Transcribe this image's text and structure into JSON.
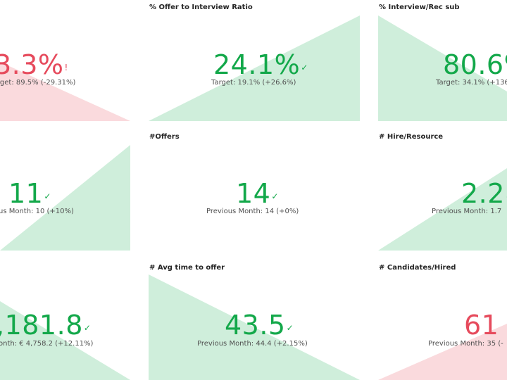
{
  "colors": {
    "good": "#13a84a",
    "bad": "#e64a5c",
    "good_fill": "#cfeedb",
    "bad_fill": "#fadadd"
  },
  "tiles": [
    {
      "title": "",
      "value": "3.3%",
      "mark": "!",
      "status": "bad",
      "sub": "rget: 89.5% (-29.31%)"
    },
    {
      "title": "% Offer to Interview Ratio",
      "value": "24.1%",
      "mark": "✓",
      "status": "good",
      "sub": "Target: 19.1% (+26.6%)"
    },
    {
      "title": "% Interview/Rec sub",
      "value": "80.6%",
      "mark": "",
      "status": "good",
      "sub": "Target: 34.1% (+136"
    },
    {
      "title": "",
      "value": "11",
      "mark": "✓",
      "status": "good",
      "sub": "us Month: 10 (+10%)"
    },
    {
      "title": "#Offers",
      "value": "14",
      "mark": "✓",
      "status": "good",
      "sub": "Previous Month: 14 (+0%)"
    },
    {
      "title": "# Hire/Resource",
      "value": "2.2",
      "mark": "✓",
      "status": "good",
      "sub": "Previous Month: 1.7"
    },
    {
      "title": "",
      "value": ",181.8",
      "mark": "✓",
      "status": "good",
      "sub": "onth: € 4,758.2 (+12.11%)"
    },
    {
      "title": "# Avg time to offer",
      "value": "43.5",
      "mark": "✓",
      "status": "good",
      "sub": "Previous Month: 44.4 (+2.15%)"
    },
    {
      "title": "# Candidates/Hired",
      "value": "61",
      "mark": "",
      "status": "bad",
      "sub": "Previous Month: 35 (-"
    }
  ]
}
